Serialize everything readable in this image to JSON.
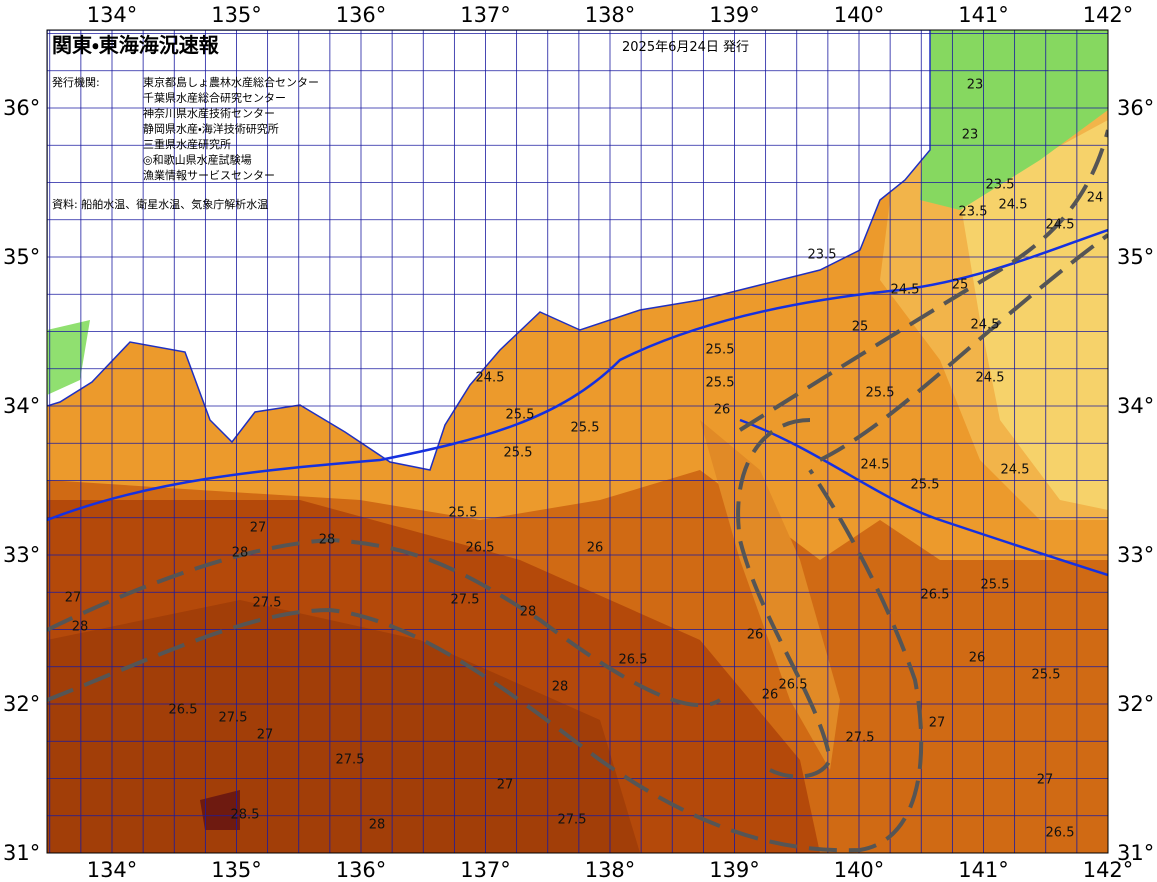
{
  "header": {
    "title": "関東・東海海況速報",
    "date": "2025年6月24日 発行",
    "issuer_label": "発行機関:",
    "issuers": [
      "東京都島しょ農林水産総合センター",
      "千葉県水産総合研究センター",
      "神奈川県水産技術センター",
      "静岡県水産・海洋技術研究所",
      "三重県水産研究所",
      "◎和歌山県水産試験場",
      "漁業情報サービスセンター"
    ],
    "source": "資料: 船舶水温、衛星水温、気象庁解析水温"
  },
  "axes": {
    "longitude_labels": [
      "134°",
      "135°",
      "136°",
      "137°",
      "138°",
      "139°",
      "140°",
      "141°",
      "142°"
    ],
    "latitude_labels": [
      "31°",
      "32°",
      "33°",
      "34°",
      "35°",
      "36°"
    ]
  },
  "contour_labels": [
    23,
    23,
    23.5,
    24,
    23.5,
    24.5,
    24.5,
    23.5,
    24.5,
    25,
    24.5,
    24.5,
    25,
    25.5,
    24.5,
    25.5,
    24.5,
    25.5,
    25.5,
    26,
    24.5,
    25.5,
    25.5,
    25.5,
    25.5,
    26.5,
    27,
    28,
    28,
    27.5,
    27,
    28,
    26.5,
    27.5,
    27,
    27.5,
    28,
    28,
    26.5,
    27.5,
    26,
    26,
    26,
    26.5,
    27.5,
    27.5,
    27,
    28,
    28.5,
    25.5,
    25.5,
    26,
    26.5,
    27,
    27,
    26.5
  ]
}
